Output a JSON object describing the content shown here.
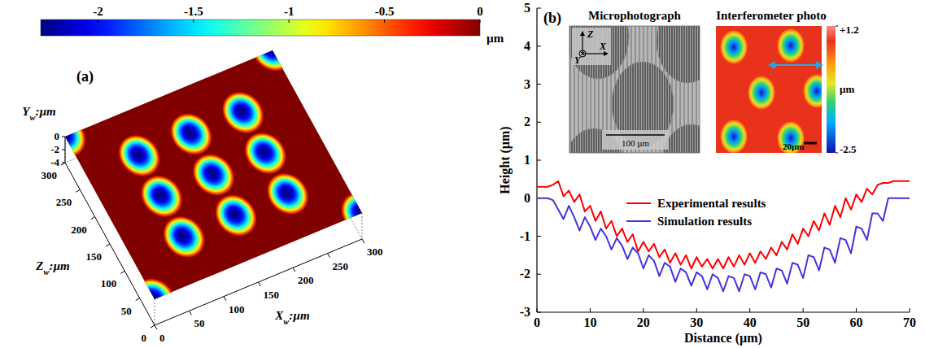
{
  "chart_data": [
    {
      "type": "surface",
      "panel": "(a)",
      "x_label": [
        "X",
        "w",
        ":µm"
      ],
      "y_label": [
        "Y",
        "w",
        ":µm"
      ],
      "z_label": [
        "Z",
        "w",
        ":µm"
      ],
      "xlim": [
        0,
        300
      ],
      "xticks": [
        0,
        50,
        100,
        150,
        200,
        250,
        300
      ],
      "zlim": [
        0,
        300
      ],
      "zticks": [
        0,
        50,
        100,
        150,
        200,
        250,
        300
      ],
      "ylim": [
        -4,
        0
      ],
      "yticks": [
        0,
        -2,
        -4
      ],
      "colorbar": {
        "range": [
          -2.3,
          0
        ],
        "ticks": [
          -2,
          -1.5,
          -1,
          -0.5,
          0
        ],
        "label": "µm"
      },
      "dimples": {
        "x": [
          0,
          300,
          0,
          300,
          75,
          150,
          225,
          75,
          150,
          225,
          75,
          150,
          225
        ],
        "z": [
          0,
          0,
          300,
          300,
          75,
          75,
          75,
          150,
          150,
          150,
          225,
          225,
          225
        ],
        "depth": [
          -2.3,
          -2.3,
          -2.3,
          -2.3,
          -2.3,
          -2.3,
          -2.3,
          -2.3,
          -2.3,
          -2.3,
          -2.3,
          -2.3,
          -2.3
        ]
      },
      "dimple_size": [
        26,
        36
      ]
    },
    {
      "type": "line",
      "panel": "(b)",
      "x_label": "Distance (µm)",
      "y_label": "Height (µm)",
      "xlim": [
        0,
        70
      ],
      "xticks": [
        0,
        10,
        20,
        30,
        40,
        50,
        60,
        70
      ],
      "ylim": [
        -3,
        5
      ],
      "yticks": [
        -3,
        -2,
        -1,
        0,
        1,
        2,
        3,
        4,
        5
      ],
      "grid": false,
      "legend": "center",
      "x": [
        0,
        1,
        2,
        3,
        4,
        5,
        6,
        7,
        8,
        9,
        10,
        11,
        12,
        13,
        14,
        15,
        16,
        17,
        18,
        19,
        20,
        21,
        22,
        23,
        24,
        25,
        26,
        27,
        28,
        29,
        30,
        31,
        32,
        33,
        34,
        35,
        36,
        37,
        38,
        39,
        40,
        41,
        42,
        43,
        44,
        45,
        46,
        47,
        48,
        49,
        50,
        51,
        52,
        53,
        54,
        55,
        56,
        57,
        58,
        59,
        60,
        61,
        62,
        63,
        64,
        65,
        66,
        67,
        68,
        69,
        70
      ],
      "series": [
        {
          "name": "Experimental results",
          "color": "#ff0000",
          "values": [
            0.3,
            0.3,
            0.3,
            0.35,
            0.45,
            0.05,
            0.2,
            -0.1,
            0.1,
            -0.35,
            -0.2,
            -0.6,
            -0.35,
            -0.8,
            -0.6,
            -1.0,
            -0.8,
            -1.15,
            -0.95,
            -1.4,
            -1.15,
            -1.4,
            -1.2,
            -1.55,
            -1.35,
            -1.7,
            -1.45,
            -1.75,
            -1.5,
            -1.85,
            -1.55,
            -1.8,
            -1.6,
            -1.85,
            -1.6,
            -1.85,
            -1.55,
            -1.8,
            -1.5,
            -1.75,
            -1.45,
            -1.7,
            -1.4,
            -1.6,
            -1.3,
            -1.5,
            -1.15,
            -1.35,
            -0.95,
            -1.2,
            -0.8,
            -1.0,
            -0.6,
            -0.85,
            -0.4,
            -0.7,
            -0.2,
            -0.5,
            0.0,
            -0.3,
            0.1,
            -0.1,
            0.25,
            0.1,
            0.35,
            0.4,
            0.4,
            0.45,
            0.45,
            0.45,
            0.45
          ]
        },
        {
          "name": "Simulation results",
          "color": "#4433dd",
          "values": [
            0,
            0,
            0,
            -0.05,
            -0.3,
            -0.55,
            -0.2,
            -0.5,
            -0.85,
            -0.5,
            -0.75,
            -1.1,
            -0.8,
            -1.0,
            -1.35,
            -1.05,
            -1.25,
            -1.6,
            -1.3,
            -1.45,
            -1.85,
            -1.5,
            -1.65,
            -2.05,
            -1.7,
            -1.8,
            -2.2,
            -1.85,
            -1.95,
            -2.3,
            -1.95,
            -2.05,
            -2.4,
            -2.0,
            -2.1,
            -2.45,
            -2.05,
            -2.1,
            -2.45,
            -2.0,
            -2.05,
            -2.4,
            -1.95,
            -2.0,
            -2.35,
            -1.85,
            -1.9,
            -2.25,
            -1.7,
            -1.75,
            -2.1,
            -1.5,
            -1.55,
            -1.9,
            -1.3,
            -1.35,
            -1.7,
            -1.05,
            -1.1,
            -1.45,
            -0.75,
            -0.8,
            -1.1,
            -0.4,
            -0.4,
            -0.6,
            0,
            0,
            0,
            0,
            0
          ]
        }
      ],
      "insets": [
        {
          "title": "Microphotograph",
          "axes": [
            "Z",
            "X",
            "Y"
          ],
          "scale_bar": "100 µm"
        },
        {
          "title": "Interferometer photo",
          "scale_bar": "20µm",
          "colorbar": {
            "range": [
              -2.5,
              1.2
            ],
            "ticks": [
              {
                "value": 1.2,
                "label": "+1.2"
              },
              -2.5
            ],
            "label": "µm"
          }
        }
      ]
    }
  ]
}
